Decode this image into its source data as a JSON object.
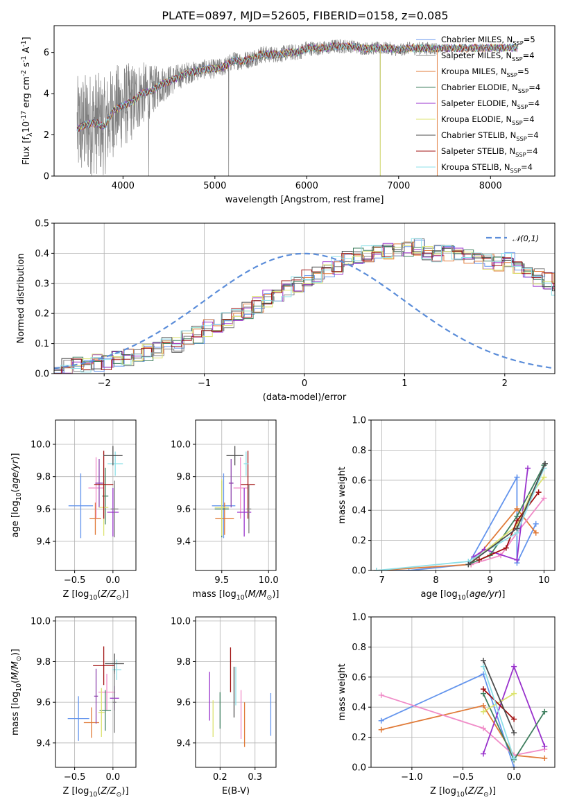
{
  "figure": {
    "title": "PLATE=0897, MJD=52605, FIBERID=0158, z=0.085"
  },
  "chart_data": [
    {
      "id": "spectrum",
      "type": "line",
      "xlabel": "wavelength [Angstrom, rest frame]",
      "ylabel": "Flux [f$_\\lambda$10$^{-17}$ erg cm$^{-2}$ s$^{-1}$ A$^{-1}$]",
      "xlim": [
        3250,
        8700
      ],
      "ylim": [
        0,
        7.3
      ],
      "xticks": [
        4000,
        5000,
        6000,
        7000,
        8000
      ],
      "yticks": [
        0,
        2,
        4,
        6
      ],
      "data_color": "#808080",
      "data_envelope": {
        "x": [
          3500,
          3600,
          3700,
          3800,
          3900,
          4000,
          4100,
          4200,
          4300,
          4400,
          4500,
          4600,
          4700,
          4800,
          4900,
          5000,
          5100,
          5200,
          5300,
          5400,
          5500,
          5600,
          5700,
          5800,
          5900,
          6000,
          6100,
          6200,
          6300,
          6400,
          6500,
          6600,
          6700,
          6800,
          6900,
          7000,
          7100,
          7200,
          7300,
          7400
        ],
        "y": [
          2.3,
          2.5,
          2.6,
          2.4,
          3.2,
          3.4,
          3.6,
          4.0,
          4.1,
          4.4,
          4.6,
          4.8,
          5.0,
          5.1,
          5.2,
          5.2,
          5.3,
          5.6,
          5.6,
          5.7,
          5.9,
          5.9,
          5.9,
          6.0,
          6.0,
          6.2,
          6.2,
          6.2,
          6.3,
          6.3,
          6.3,
          6.2,
          6.2,
          6.2,
          6.2,
          6.1,
          6.2,
          6.2,
          6.2,
          6.2
        ],
        "noise": [
          1.6,
          1.6,
          1.6,
          1.5,
          1.4,
          1.3,
          1.2,
          1.0,
          0.8,
          0.6,
          0.5,
          0.4,
          0.35,
          0.3,
          0.3,
          0.3,
          0.28,
          0.28,
          0.28,
          0.28,
          0.28,
          0.25,
          0.25,
          0.25,
          0.25,
          0.25,
          0.22,
          0.22,
          0.22,
          0.22,
          0.2,
          0.2,
          0.2,
          0.2,
          0.2,
          0.2,
          0.2,
          0.2,
          0.2,
          0.2
        ]
      },
      "model_x_range": [
        3500,
        8300
      ],
      "data_x_range": [
        3500,
        7420
      ],
      "data_dips_to_zero": [
        4280,
        5150,
        6800
      ],
      "series": [
        {
          "name": "Chabrier MILES, N$_{SSP}$=5",
          "color": "#6495ed"
        },
        {
          "name": "Salpeter MILES, N$_{SSP}$=4",
          "color": "#8b8b8b"
        },
        {
          "name": "Kroupa MILES, N$_{SSP}$=5",
          "color": "#e07b39"
        },
        {
          "name": "Chabrier ELODIE, N$_{SSP}$=4",
          "color": "#3f7f5f"
        },
        {
          "name": "Salpeter ELODIE, N$_{SSP}$=4",
          "color": "#9932cc"
        },
        {
          "name": "Kroupa ELODIE, N$_{SSP}$=4",
          "color": "#dce36f"
        },
        {
          "name": "Chabrier STELIB, N$_{SSP}$=4",
          "color": "#4d4d4d"
        },
        {
          "name": "Salpeter STELIB, N$_{SSP}$=4",
          "color": "#a01010"
        },
        {
          "name": "Kroupa STELIB, N$_{SSP}$=4",
          "color": "#8ee0e8"
        }
      ],
      "legend_position": "right"
    },
    {
      "id": "residuals",
      "type": "histogram",
      "xlabel": "(data-model)/error",
      "ylabel": "Normed distribution",
      "xlim": [
        -2.5,
        2.5
      ],
      "ylim": [
        0,
        0.5
      ],
      "xticks": [
        -2,
        -1,
        0,
        1,
        2
      ],
      "yticks": [
        0.0,
        0.1,
        0.2,
        0.3,
        0.4,
        0.5
      ],
      "bin_width": 0.1,
      "gaussian": {
        "name": "$\\mathcal{N}(0,1)$",
        "mean": 0,
        "sigma": 1,
        "color": "#5b8dd9",
        "style": "dashed"
      },
      "hist_base": [
        0.018,
        0.021,
        0.026,
        0.03,
        0.035,
        0.04,
        0.046,
        0.055,
        0.06,
        0.07,
        0.08,
        0.092,
        0.1,
        0.12,
        0.13,
        0.15,
        0.16,
        0.18,
        0.19,
        0.21,
        0.23,
        0.25,
        0.26,
        0.28,
        0.3,
        0.32,
        0.33,
        0.35,
        0.36,
        0.38,
        0.39,
        0.4,
        0.4,
        0.41,
        0.42,
        0.41,
        0.42,
        0.4,
        0.4,
        0.4,
        0.4,
        0.39,
        0.38,
        0.37,
        0.37,
        0.38,
        0.35,
        0.34,
        0.32,
        0.31,
        0.29,
        0.27,
        0.25,
        0.23,
        0.2,
        0.18,
        0.15,
        0.13,
        0.1,
        0.1,
        0.1,
        0.08,
        0.07,
        0.06,
        0.055,
        0.05,
        0.045,
        0.04,
        0.035,
        0.03,
        0.025,
        0.022,
        0.02,
        0.02
      ],
      "hist_x0": -2.5,
      "legend_position": "top-right"
    },
    {
      "id": "age_vs_Z",
      "type": "scatter",
      "xlabel": "Z [log$_{10}$($Z/Z_\\odot$)]",
      "ylabel": "age  [log$_{10}$($age/yr$)]",
      "xlim": [
        -0.75,
        0.3
      ],
      "ylim": [
        9.22,
        10.15
      ],
      "xticks": [
        -0.5,
        0.0
      ],
      "yticks": [
        9.4,
        9.6,
        9.8,
        10.0
      ],
      "points": [
        {
          "x": -0.42,
          "y": 9.62,
          "xe": 0.32,
          "ye": 0.4,
          "color": "#6495ed"
        },
        {
          "x": -0.23,
          "y": 9.54,
          "xe": 0.15,
          "ye": 0.2,
          "color": "#e07b39"
        },
        {
          "x": -0.22,
          "y": 9.73,
          "xe": 0.2,
          "ye": 0.38,
          "color": "#f08cc8"
        },
        {
          "x": -0.18,
          "y": 9.76,
          "xe": 0.1,
          "ye": 0.3,
          "color": "#8e44ad"
        },
        {
          "x": -0.1,
          "y": 9.68,
          "xe": 0.08,
          "ye": 0.35,
          "color": "#3f7f5f"
        },
        {
          "x": -0.12,
          "y": 9.61,
          "xe": 0.12,
          "ye": 0.35,
          "color": "#dce36f"
        },
        {
          "x": -0.12,
          "y": 9.75,
          "xe": 0.25,
          "ye": 0.42,
          "color": "#a01010"
        },
        {
          "x": 0.03,
          "y": 9.88,
          "xe": 0.2,
          "ye": 0.15,
          "color": "#8ee0e8"
        },
        {
          "x": 0.0,
          "y": 9.93,
          "xe": 0.25,
          "ye": 0.12,
          "color": "#4d4d4d"
        },
        {
          "x": 0.0,
          "y": 9.58,
          "xe": 0.15,
          "ye": 0.3,
          "color": "#9932cc"
        },
        {
          "x": 0.02,
          "y": 9.6,
          "xe": 0.1,
          "ye": 0.35,
          "color": "#7f7f7f"
        }
      ]
    },
    {
      "id": "age_vs_mass",
      "type": "scatter",
      "xlabel": "mass [log$_{10}$($M/M_\\odot$)]",
      "ylabel": "",
      "xlim": [
        9.22,
        10.08
      ],
      "ylim": [
        9.22,
        10.15
      ],
      "xticks": [
        9.5,
        10.0
      ],
      "yticks": [
        9.4,
        9.6,
        9.8,
        10.0
      ],
      "points": [
        {
          "x": 9.52,
          "y": 9.62,
          "xe": 0.25,
          "ye": 0.4,
          "color": "#6495ed"
        },
        {
          "x": 9.53,
          "y": 9.54,
          "xe": 0.2,
          "ye": 0.2,
          "color": "#e07b39"
        },
        {
          "x": 9.7,
          "y": 9.73,
          "xe": 0.15,
          "ye": 0.38,
          "color": "#f08cc8"
        },
        {
          "x": 9.6,
          "y": 9.76,
          "xe": 0.05,
          "ye": 0.3,
          "color": "#8e44ad"
        },
        {
          "x": 9.5,
          "y": 9.6,
          "xe": 0.15,
          "ye": 0.35,
          "color": "#3f7f5f"
        },
        {
          "x": 9.5,
          "y": 9.61,
          "xe": 0.15,
          "ye": 0.35,
          "color": "#dce36f"
        },
        {
          "x": 9.78,
          "y": 9.75,
          "xe": 0.15,
          "ye": 0.42,
          "color": "#a01010"
        },
        {
          "x": 9.76,
          "y": 9.88,
          "xe": 0.05,
          "ye": 0.15,
          "color": "#8ee0e8"
        },
        {
          "x": 9.64,
          "y": 9.93,
          "xe": 0.18,
          "ye": 0.12,
          "color": "#4d4d4d"
        },
        {
          "x": 9.74,
          "y": 9.58,
          "xe": 0.15,
          "ye": 0.3,
          "color": "#9932cc"
        },
        {
          "x": 9.79,
          "y": 9.6,
          "xe": 0.05,
          "ye": 0.3,
          "color": "#7f7f7f"
        }
      ]
    },
    {
      "id": "massweight_vs_age",
      "type": "line",
      "xlabel": "age  [log$_{10}$($age/yr$)]",
      "ylabel": "mass weight",
      "xlim": [
        6.8,
        10.2
      ],
      "ylim": [
        0,
        1
      ],
      "xticks": [
        7,
        8,
        9,
        10
      ],
      "yticks": [
        0.0,
        0.2,
        0.4,
        0.6,
        0.8,
        1.0
      ],
      "series": [
        {
          "color": "#6495ed",
          "x": [
            6.9,
            7.5,
            8.6,
            9.5,
            9.5,
            9.85
          ],
          "y": [
            0.0,
            0.0,
            0.04,
            0.62,
            0.05,
            0.31
          ]
        },
        {
          "color": "#e07b39",
          "x": [
            6.9,
            8.65,
            9.5,
            9.85
          ],
          "y": [
            0.0,
            0.04,
            0.41,
            0.25
          ]
        },
        {
          "color": "#f08cc8",
          "x": [
            8.65,
            9.2,
            9.5,
            10.0
          ],
          "y": [
            0.04,
            0.1,
            0.25,
            0.48
          ]
        },
        {
          "color": "#9932cc",
          "x": [
            8.7,
            8.9,
            9.5,
            9.7
          ],
          "y": [
            0.09,
            0.14,
            0.07,
            0.68
          ]
        },
        {
          "color": "#3f7f5f",
          "x": [
            8.6,
            9.0,
            9.5,
            10.0
          ],
          "y": [
            0.04,
            0.1,
            0.36,
            0.7
          ]
        },
        {
          "color": "#dce36f",
          "x": [
            8.6,
            9.5,
            9.75,
            10.0
          ],
          "y": [
            0.04,
            0.3,
            0.5,
            0.62
          ]
        },
        {
          "color": "#a01010",
          "x": [
            8.8,
            9.3,
            9.5,
            9.9
          ],
          "y": [
            0.07,
            0.15,
            0.33,
            0.52
          ]
        },
        {
          "color": "#8ee0e8",
          "x": [
            6.9,
            8.6,
            9.5,
            10.0
          ],
          "y": [
            0.0,
            0.06,
            0.25,
            0.68
          ]
        },
        {
          "color": "#4d4d4d",
          "x": [
            8.6,
            9.5,
            10.02
          ],
          "y": [
            0.04,
            0.28,
            0.71
          ]
        }
      ]
    },
    {
      "id": "mass_vs_Z",
      "type": "scatter",
      "xlabel": "Z [log$_{10}$($Z/Z_\\odot$)]",
      "ylabel": "mass [log$_{10}$($M/M_\\odot$)]",
      "xlim": [
        -0.75,
        0.3
      ],
      "ylim": [
        9.28,
        10.02
      ],
      "xticks": [
        -0.5,
        0.0
      ],
      "yticks": [
        9.4,
        9.6,
        9.8,
        10.0
      ],
      "points": [
        {
          "x": -0.45,
          "y": 9.52,
          "xe": 0.28,
          "ye": 0.22,
          "color": "#6495ed"
        },
        {
          "x": -0.28,
          "y": 9.5,
          "xe": 0.2,
          "ye": 0.15,
          "color": "#e07b39"
        },
        {
          "x": -0.08,
          "y": 9.65,
          "xe": 0.22,
          "ye": 0.18,
          "color": "#f08cc8"
        },
        {
          "x": -0.22,
          "y": 9.63,
          "xe": 0.05,
          "ye": 0.27,
          "color": "#8e44ad"
        },
        {
          "x": -0.1,
          "y": 9.56,
          "xe": 0.15,
          "ye": 0.2,
          "color": "#3f7f5f"
        },
        {
          "x": -0.15,
          "y": 9.55,
          "xe": 0.08,
          "ye": 0.24,
          "color": "#dce36f"
        },
        {
          "x": -0.12,
          "y": 9.78,
          "xe": 0.28,
          "ye": 0.19,
          "color": "#a01010"
        },
        {
          "x": 0.05,
          "y": 9.76,
          "xe": 0.12,
          "ye": 0.1,
          "color": "#8ee0e8"
        },
        {
          "x": 0.02,
          "y": 9.79,
          "xe": 0.25,
          "ye": 0.1,
          "color": "#4d4d4d"
        },
        {
          "x": 0.02,
          "y": 9.62,
          "xe": 0.12,
          "ye": 0.12,
          "color": "#9932cc"
        },
        {
          "x": 0.02,
          "y": 9.6,
          "xe": 0.05,
          "ye": 0.3,
          "color": "#7f7f7f"
        }
      ]
    },
    {
      "id": "mass_vs_EBV",
      "type": "scatter",
      "xlabel": "E(B-V)",
      "ylabel": "",
      "xlim": [
        0.13,
        0.36
      ],
      "ylim": [
        9.28,
        10.02
      ],
      "xticks": [
        0.2,
        0.3
      ],
      "yticks": [
        9.4,
        9.6,
        9.8,
        10.0
      ],
      "points": [
        {
          "x": 0.17,
          "y": 9.63,
          "ye": 0.24,
          "color": "#9932cc"
        },
        {
          "x": 0.18,
          "y": 9.52,
          "ye": 0.18,
          "color": "#dce36f"
        },
        {
          "x": 0.2,
          "y": 9.56,
          "ye": 0.18,
          "color": "#3f7f5f"
        },
        {
          "x": 0.23,
          "y": 9.76,
          "ye": 0.22,
          "color": "#a01010"
        },
        {
          "x": 0.24,
          "y": 9.65,
          "ye": 0.25,
          "color": "#4d4d4d"
        },
        {
          "x": 0.245,
          "y": 9.68,
          "ye": 0.19,
          "color": "#8ee0e8"
        },
        {
          "x": 0.26,
          "y": 9.54,
          "ye": 0.24,
          "color": "#f08cc8"
        },
        {
          "x": 0.27,
          "y": 9.49,
          "ye": 0.22,
          "color": "#e07b39"
        },
        {
          "x": 0.345,
          "y": 9.54,
          "ye": 0.21,
          "color": "#6495ed"
        }
      ]
    },
    {
      "id": "massweight_vs_Z",
      "type": "line",
      "xlabel": "Z [log$_{10}$($Z/Z_\\odot$)]",
      "ylabel": "mass weight",
      "xlim": [
        -1.4,
        0.4
      ],
      "ylim": [
        0,
        1
      ],
      "xticks": [
        -1.0,
        -0.5,
        0.0
      ],
      "yticks": [
        0.0,
        0.2,
        0.4,
        0.6,
        0.8,
        1.0
      ],
      "series": [
        {
          "color": "#6495ed",
          "x": [
            -1.3,
            -0.3,
            0.0
          ],
          "y": [
            0.31,
            0.62,
            0.0
          ]
        },
        {
          "color": "#e07b39",
          "x": [
            -1.3,
            -0.3,
            0.0,
            0.3
          ],
          "y": [
            0.25,
            0.41,
            0.08,
            0.06
          ]
        },
        {
          "color": "#f08cc8",
          "x": [
            -1.3,
            -0.3,
            0.0,
            0.3
          ],
          "y": [
            0.48,
            0.26,
            0.08,
            0.12
          ]
        },
        {
          "color": "#9932cc",
          "x": [
            -0.3,
            0.0,
            0.3
          ],
          "y": [
            0.09,
            0.67,
            0.14
          ]
        },
        {
          "color": "#3f7f5f",
          "x": [
            -0.3,
            0.0,
            0.3
          ],
          "y": [
            0.49,
            0.05,
            0.37
          ]
        },
        {
          "color": "#dce36f",
          "x": [
            -0.3,
            0.0
          ],
          "y": [
            0.37,
            0.49
          ]
        },
        {
          "color": "#a01010",
          "x": [
            -0.3,
            0.0
          ],
          "y": [
            0.52,
            0.32
          ]
        },
        {
          "color": "#8ee0e8",
          "x": [
            -0.3,
            0.0
          ],
          "y": [
            0.67,
            0.06
          ]
        },
        {
          "color": "#4d4d4d",
          "x": [
            -0.3,
            0.0
          ],
          "y": [
            0.71,
            0.23
          ]
        }
      ]
    }
  ]
}
